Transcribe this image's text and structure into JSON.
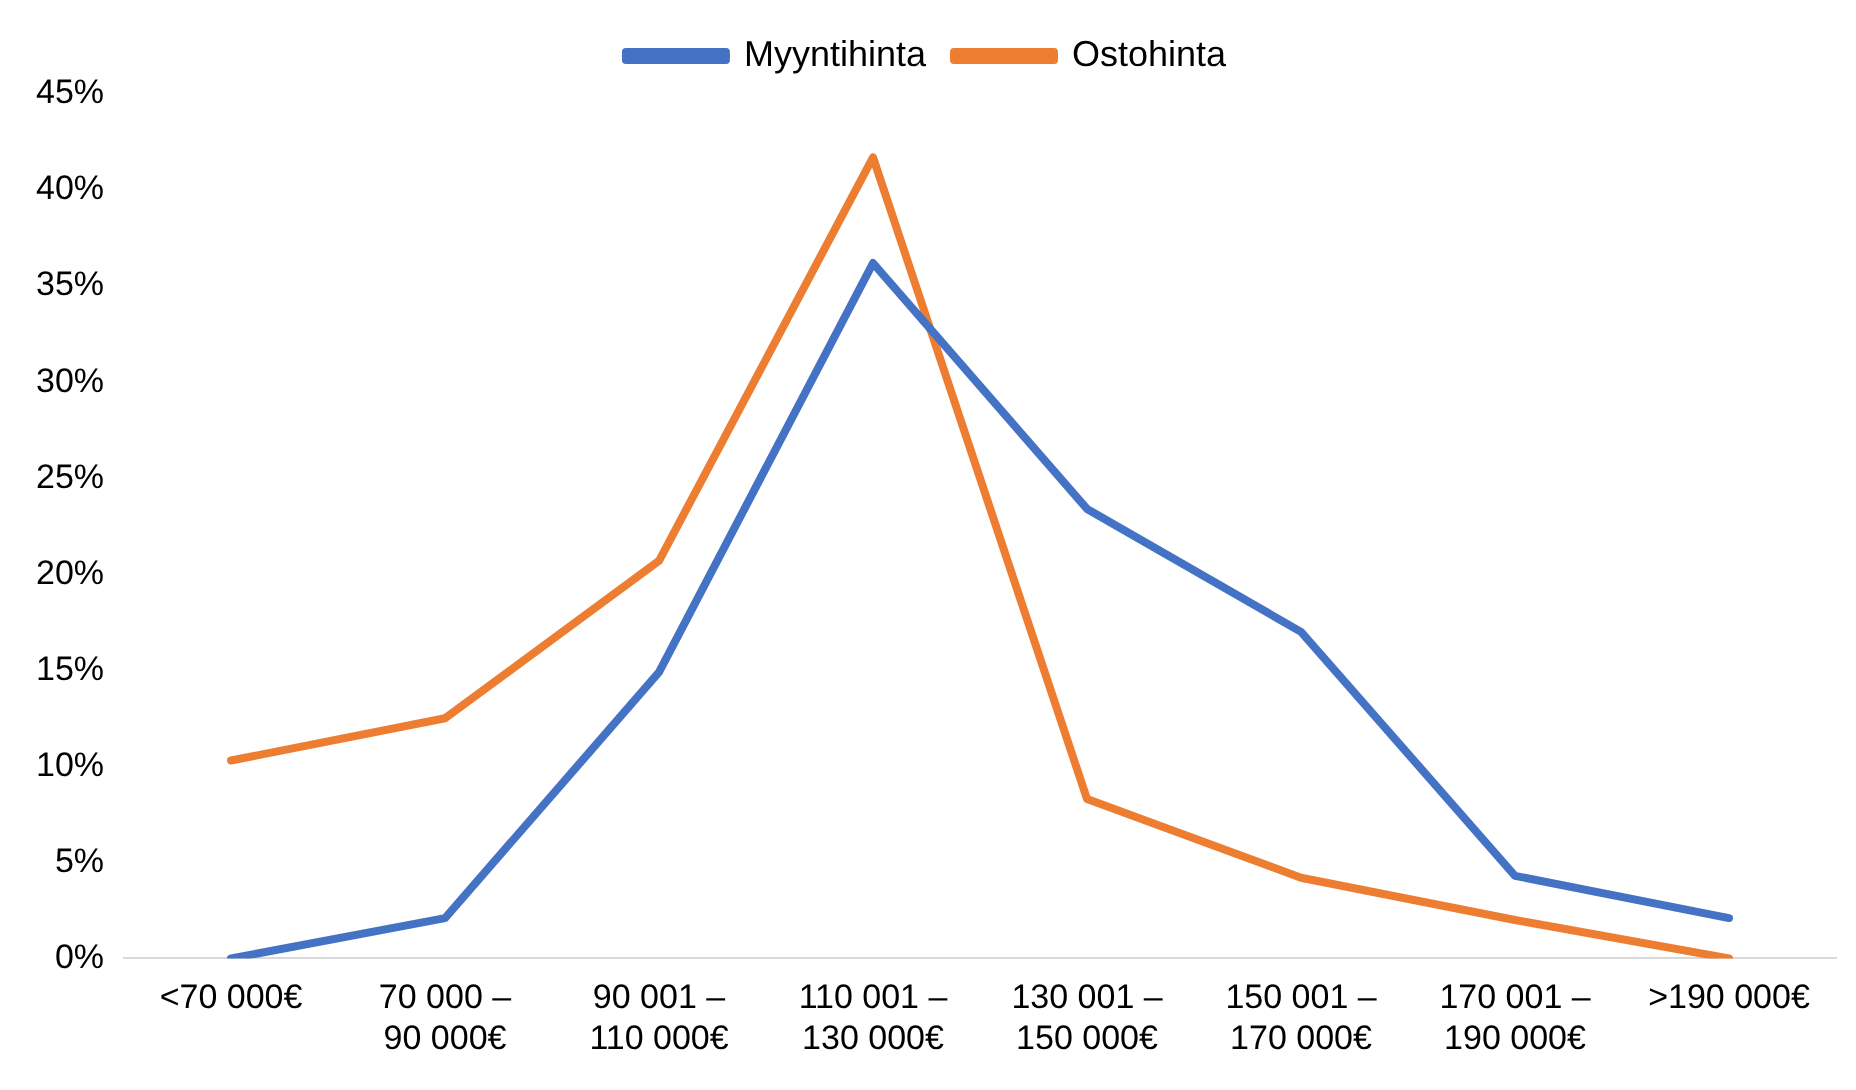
{
  "chart_data": {
    "type": "line",
    "categories": [
      "<70 000€",
      "70 000 – 90 000€",
      "90 001 – 110 000€",
      "110 001 – 130 000€",
      "130 001 – 150 000€",
      "150 001 – 170 000€",
      "170 001 – 190 000€",
      ">190 000€"
    ],
    "series": [
      {
        "name": "Myyntihinta",
        "color": "#4472c4",
        "values": [
          0,
          2.1,
          14.9,
          36.2,
          23.4,
          17.0,
          4.3,
          2.1
        ]
      },
      {
        "name": "Ostohinta",
        "color": "#ed7d31",
        "values": [
          10.3,
          12.5,
          20.7,
          41.7,
          8.3,
          4.2,
          2.0,
          0
        ]
      }
    ],
    "ylim": [
      0,
      45
    ],
    "yticks": [
      {
        "value": 0,
        "label": "0%"
      },
      {
        "value": 5,
        "label": "5%"
      },
      {
        "value": 10,
        "label": "10%"
      },
      {
        "value": 15,
        "label": "15%"
      },
      {
        "value": 20,
        "label": "20%"
      },
      {
        "value": 25,
        "label": "25%"
      },
      {
        "value": 30,
        "label": "30%"
      },
      {
        "value": 35,
        "label": "35%"
      },
      {
        "value": 40,
        "label": "40%"
      },
      {
        "value": 45,
        "label": "45%"
      }
    ],
    "legend": "top",
    "marker": "none",
    "line_style": "solid"
  }
}
